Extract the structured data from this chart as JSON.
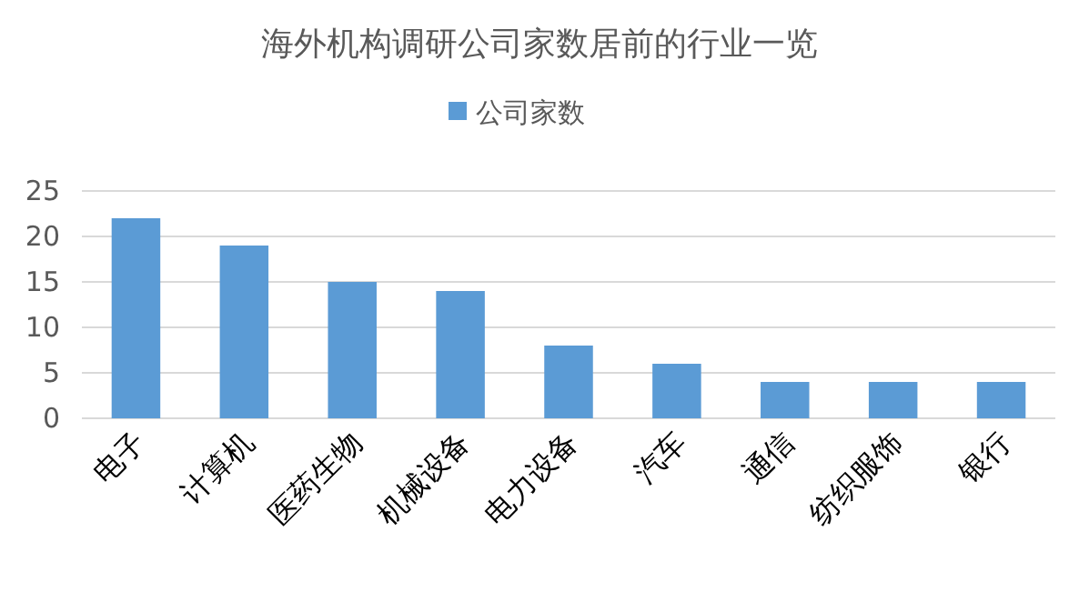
{
  "chart_data": {
    "type": "bar",
    "title": "海外机构调研公司家数居前的行业一览",
    "categories": [
      "电子",
      "计算机",
      "医药生物",
      "机械设备",
      "电力设备",
      "汽车",
      "通信",
      "纺织服饰",
      "银行"
    ],
    "series": [
      {
        "name": "公司家数",
        "color": "#5b9bd5",
        "values": [
          22,
          19,
          15,
          14,
          8,
          6,
          4,
          4,
          4
        ]
      }
    ],
    "ylim": [
      0,
      25
    ],
    "yticks": [
      0,
      5,
      10,
      15,
      20,
      25
    ],
    "grid": "y",
    "legend": "top"
  }
}
